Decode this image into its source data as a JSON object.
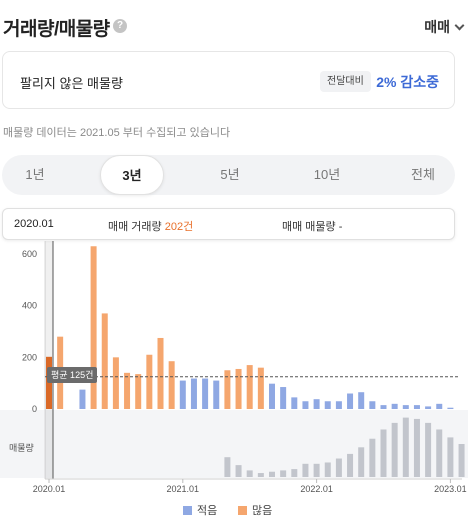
{
  "header": {
    "title": "거래량/매물량",
    "help_icon": "question-circle-icon",
    "trade_type": "매매"
  },
  "unsold": {
    "label": "팔리지 않은 매물량",
    "badge": "전달대비",
    "change": "2% 감소중"
  },
  "notice": "매물량 데이터는 2021.05 부터 수집되고 있습니다",
  "period_tabs": [
    {
      "label": "1년",
      "active": false
    },
    {
      "label": "3년",
      "active": true
    },
    {
      "label": "5년",
      "active": false
    },
    {
      "label": "10년",
      "active": false
    },
    {
      "label": "전체",
      "active": false
    }
  ],
  "info": {
    "date": "2020.01",
    "trade_label": "매매 거래량",
    "trade_value": "202건",
    "stock_label": "매매 매물량",
    "stock_value": "-"
  },
  "chart_data": {
    "type": "bar",
    "ylabel": "",
    "ylim": [
      0,
      600
    ],
    "y_ticks": [
      "600",
      "400",
      "200",
      "0"
    ],
    "x_ticks": [
      "2020.01",
      "2021.01",
      "2022.01",
      "2023.01"
    ],
    "average": {
      "value": 125,
      "label": "평균 125건"
    },
    "lower_panel_label": "매물량",
    "legend": [
      {
        "name": "적음",
        "color": "#8fa8e3"
      },
      {
        "name": "많음",
        "color": "#f5a66e"
      }
    ],
    "colors": {
      "low": "#8fa8e3",
      "high": "#f5a66e",
      "selected": "#e8702a",
      "stock": "#c2c5cc"
    },
    "trade_volume": [
      {
        "month": "2020.01",
        "value": 202,
        "level": "high",
        "selected": true
      },
      {
        "month": "2020.02",
        "value": 280,
        "level": "high"
      },
      {
        "month": "2020.03",
        "value": 0,
        "level": "low"
      },
      {
        "month": "2020.04",
        "value": 75,
        "level": "low"
      },
      {
        "month": "2020.05",
        "value": 630,
        "level": "high"
      },
      {
        "month": "2020.06",
        "value": 370,
        "level": "high"
      },
      {
        "month": "2020.07",
        "value": 200,
        "level": "high"
      },
      {
        "month": "2020.08",
        "value": 140,
        "level": "high"
      },
      {
        "month": "2020.09",
        "value": 135,
        "level": "high"
      },
      {
        "month": "2020.10",
        "value": 210,
        "level": "high"
      },
      {
        "month": "2020.11",
        "value": 275,
        "level": "high"
      },
      {
        "month": "2020.12",
        "value": 185,
        "level": "high"
      },
      {
        "month": "2021.01",
        "value": 110,
        "level": "low"
      },
      {
        "month": "2021.02",
        "value": 118,
        "level": "low"
      },
      {
        "month": "2021.03",
        "value": 118,
        "level": "low"
      },
      {
        "month": "2021.04",
        "value": 110,
        "level": "low"
      },
      {
        "month": "2021.05",
        "value": 150,
        "level": "high"
      },
      {
        "month": "2021.06",
        "value": 155,
        "level": "high"
      },
      {
        "month": "2021.07",
        "value": 170,
        "level": "high"
      },
      {
        "month": "2021.08",
        "value": 160,
        "level": "high"
      },
      {
        "month": "2021.09",
        "value": 98,
        "level": "low"
      },
      {
        "month": "2021.10",
        "value": 85,
        "level": "low"
      },
      {
        "month": "2021.11",
        "value": 45,
        "level": "low"
      },
      {
        "month": "2021.12",
        "value": 30,
        "level": "low"
      },
      {
        "month": "2022.01",
        "value": 38,
        "level": "low"
      },
      {
        "month": "2022.02",
        "value": 30,
        "level": "low"
      },
      {
        "month": "2022.03",
        "value": 30,
        "level": "low"
      },
      {
        "month": "2022.04",
        "value": 60,
        "level": "low"
      },
      {
        "month": "2022.05",
        "value": 65,
        "level": "low"
      },
      {
        "month": "2022.06",
        "value": 30,
        "level": "low"
      },
      {
        "month": "2022.07",
        "value": 15,
        "level": "low"
      },
      {
        "month": "2022.08",
        "value": 20,
        "level": "low"
      },
      {
        "month": "2022.09",
        "value": 15,
        "level": "low"
      },
      {
        "month": "2022.10",
        "value": 15,
        "level": "low"
      },
      {
        "month": "2022.11",
        "value": 10,
        "level": "low"
      },
      {
        "month": "2022.12",
        "value": 20,
        "level": "low"
      },
      {
        "month": "2023.01",
        "value": 5,
        "level": "low"
      }
    ],
    "stock_volume": [
      {
        "month": "2021.05",
        "value": 30
      },
      {
        "month": "2021.06",
        "value": 18
      },
      {
        "month": "2021.07",
        "value": 10
      },
      {
        "month": "2021.08",
        "value": 6
      },
      {
        "month": "2021.09",
        "value": 8
      },
      {
        "month": "2021.10",
        "value": 10
      },
      {
        "month": "2021.11",
        "value": 12
      },
      {
        "month": "2021.12",
        "value": 20
      },
      {
        "month": "2022.01",
        "value": 20
      },
      {
        "month": "2022.02",
        "value": 22
      },
      {
        "month": "2022.03",
        "value": 28
      },
      {
        "month": "2022.04",
        "value": 35
      },
      {
        "month": "2022.05",
        "value": 45
      },
      {
        "month": "2022.06",
        "value": 58
      },
      {
        "month": "2022.07",
        "value": 72
      },
      {
        "month": "2022.08",
        "value": 82
      },
      {
        "month": "2022.09",
        "value": 90
      },
      {
        "month": "2022.10",
        "value": 88
      },
      {
        "month": "2022.11",
        "value": 82
      },
      {
        "month": "2022.12",
        "value": 72
      },
      {
        "month": "2023.01",
        "value": 60
      },
      {
        "month": "2023.02",
        "value": 50
      },
      {
        "month": "2023.03",
        "value": 50
      }
    ]
  }
}
